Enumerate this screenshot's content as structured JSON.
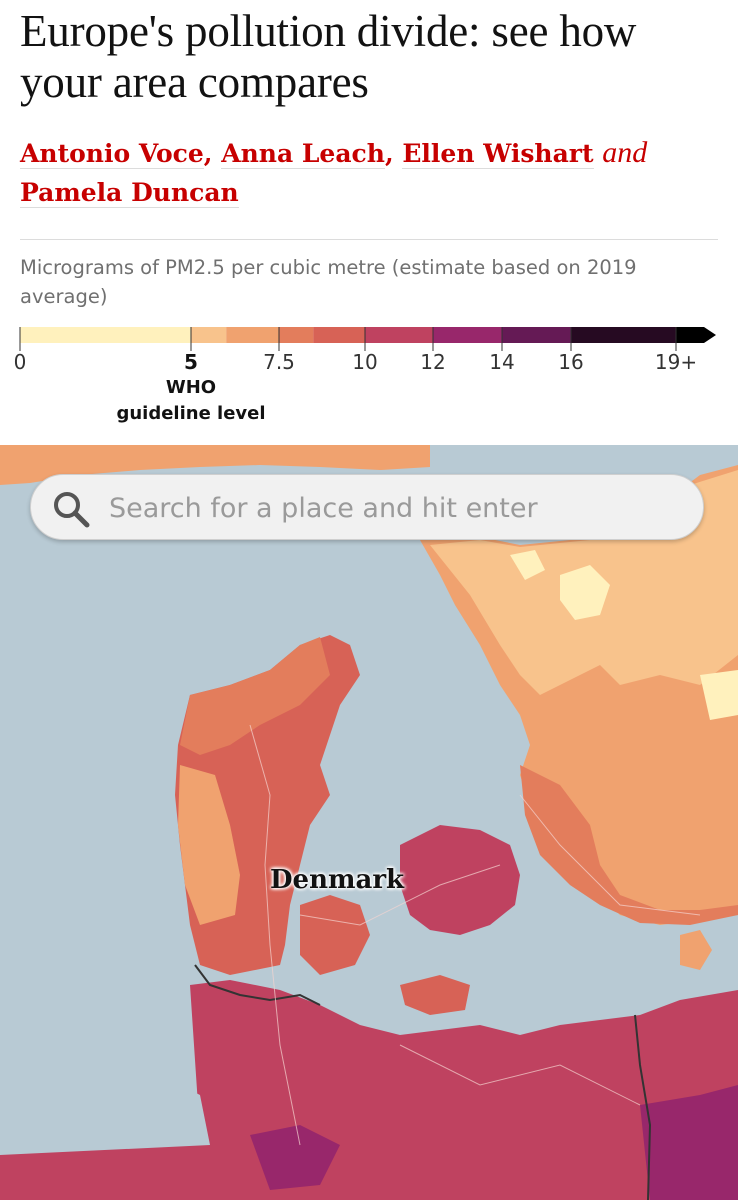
{
  "article": {
    "headline": "Europe's pollution divide: see how your area compares",
    "authors": [
      "Antonio Voce",
      "Anna Leach",
      "Ellen Wishart",
      "Pamela Duncan"
    ],
    "separator": ",",
    "conjunction": "and"
  },
  "legend": {
    "caption": "Micrograms of PM2.5 per cubic metre (estimate based on 2019 average)",
    "ticks": [
      "0",
      "5",
      "7.5",
      "10",
      "12",
      "14",
      "16",
      "19+"
    ],
    "who_line1": "WHO",
    "who_line2": "guideline level",
    "bins": [
      {
        "from": 0,
        "to": 5,
        "color": "#fff1bd"
      },
      {
        "from": 5,
        "to": 6,
        "color": "#f8c38c"
      },
      {
        "from": 6,
        "to": 7.5,
        "color": "#f0a26f"
      },
      {
        "from": 7.5,
        "to": 8.5,
        "color": "#e37d5c"
      },
      {
        "from": 8.5,
        "to": 10,
        "color": "#d76256"
      },
      {
        "from": 10,
        "to": 12,
        "color": "#bf4260"
      },
      {
        "from": 12,
        "to": 14,
        "color": "#98276b"
      },
      {
        "from": 14,
        "to": 16,
        "color": "#651a55"
      },
      {
        "from": 16,
        "to": 19,
        "color": "#260a22"
      }
    ]
  },
  "search": {
    "placeholder": "Search for a place and hit enter",
    "icon": "magnifier-icon"
  },
  "map": {
    "label": "Denmark",
    "sea_color": "#b8cad4",
    "border_color": "#333333"
  }
}
